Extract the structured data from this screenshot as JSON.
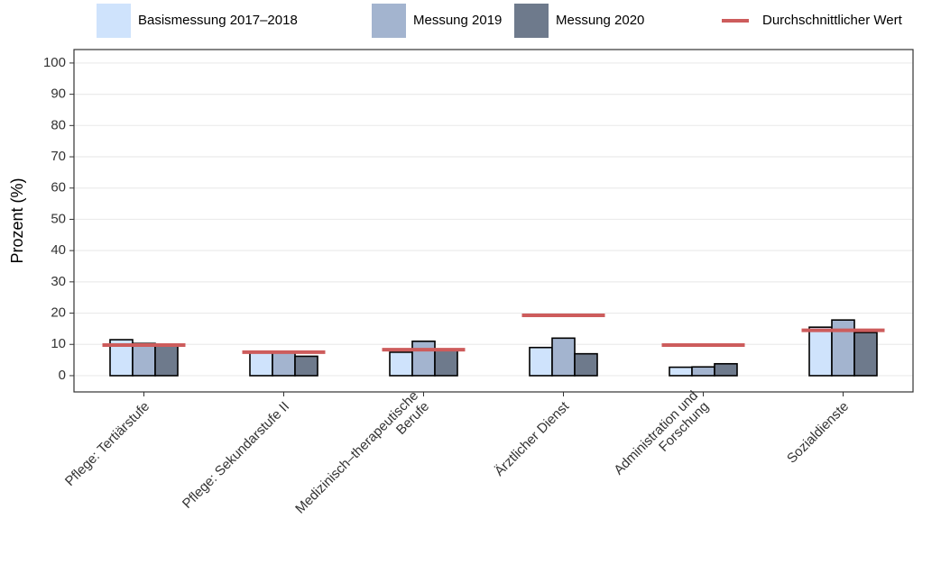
{
  "chart_data": {
    "type": "bar",
    "y_label": "Prozent (%)",
    "categories": [
      "Pflege: Tertiärstufe",
      "Pflege: Sekundarstufe II",
      "Medizinisch–therapeutische\nBerufe",
      "Ärztlicher Dienst",
      "Administration und\nForschung",
      "Sozialdienste"
    ],
    "series": [
      {
        "name": "Basismessung 2017–2018",
        "color": "#cfe3fc",
        "values": [
          11.5,
          7.5,
          7.5,
          9,
          2.7,
          15.5
        ]
      },
      {
        "name": "Messung 2019",
        "color": "#a3b4cf",
        "values": [
          10.3,
          7.5,
          11,
          12,
          2.8,
          17.8
        ]
      },
      {
        "name": "Messung 2020",
        "color": "#6e7a8c",
        "values": [
          9.5,
          6.2,
          8.2,
          7,
          3.8,
          13.8
        ]
      }
    ],
    "average": {
      "name": "Durchschnittlicher Wert",
      "color": "#cd5c5c",
      "values": [
        9.8,
        7.5,
        8.3,
        19.3,
        9.8,
        14.5
      ]
    },
    "ylim": [
      -5.2,
      104.3
    ],
    "yticks": [
      0,
      10,
      20,
      30,
      40,
      50,
      60,
      70,
      80,
      90,
      100
    ],
    "grid": true
  }
}
